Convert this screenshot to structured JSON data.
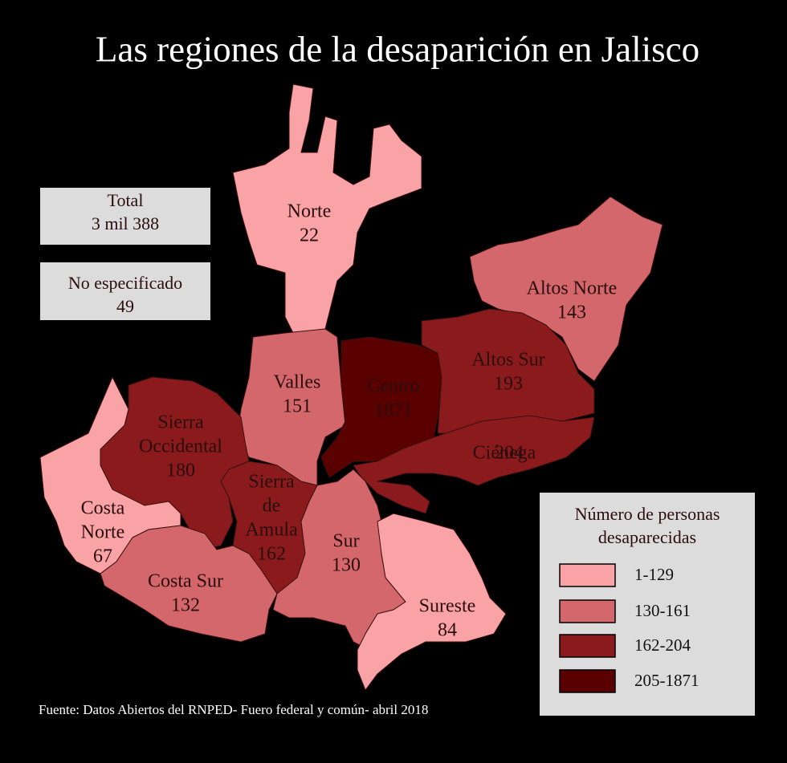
{
  "title": "Las regiones de la desaparición en Jalisco",
  "summary": [
    {
      "label": "Total",
      "value": "3 mil 388"
    },
    {
      "label": "No especificado",
      "value": 49
    }
  ],
  "regions": [
    {
      "name": [
        "Norte"
      ],
      "value": 22,
      "color": "#f9a3a7"
    },
    {
      "name": [
        "Altos Norte"
      ],
      "value": 143,
      "color": "#d4676b"
    },
    {
      "name": [
        "Valles"
      ],
      "value": 151,
      "color": "#d4676b"
    },
    {
      "name": [
        "Centro"
      ],
      "value": 1871,
      "color": "#5a0000"
    },
    {
      "name": [
        "Altos Sur"
      ],
      "value": 193,
      "color": "#8b1a1c"
    },
    {
      "name": [
        "Ciénega"
      ],
      "value": 204,
      "color": "#8b1a1c"
    },
    {
      "name": [
        "Sierra",
        "Occidental"
      ],
      "value": 180,
      "color": "#8b1a1c"
    },
    {
      "name": [
        "Costa",
        "Norte"
      ],
      "value": 67,
      "color": "#f9a3a7"
    },
    {
      "name": [
        "Sierra",
        "de",
        "Amula"
      ],
      "value": 162,
      "color": "#8b1a1c"
    },
    {
      "name": [
        "Costa Sur"
      ],
      "value": 132,
      "color": "#d4676b"
    },
    {
      "name": [
        "Sur"
      ],
      "value": 130,
      "color": "#d4676b"
    },
    {
      "name": [
        "Sureste"
      ],
      "value": 84,
      "color": "#f9a3a7"
    }
  ],
  "legend": {
    "title": [
      "Número de personas",
      "desaparecidas"
    ],
    "items": [
      {
        "label": "1-129",
        "color": "#f9a3a7"
      },
      {
        "label": "130-161",
        "color": "#d4676b"
      },
      {
        "label": "162-204",
        "color": "#8b1a1c"
      },
      {
        "label": "205-1871",
        "color": "#5a0000"
      }
    ]
  },
  "source": "Fuente: Datos Abiertos del RNPED- Fuero federal y común- abril 2018"
}
